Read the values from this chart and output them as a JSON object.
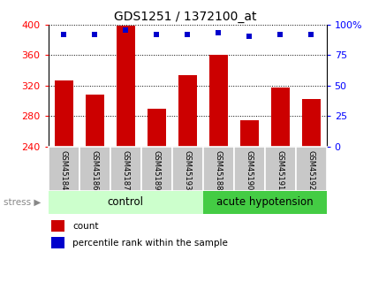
{
  "title": "GDS1251 / 1372100_at",
  "samples": [
    "GSM45184",
    "GSM45186",
    "GSM45187",
    "GSM45189",
    "GSM45193",
    "GSM45188",
    "GSM45190",
    "GSM45191",
    "GSM45192"
  ],
  "counts": [
    326,
    308,
    398,
    289,
    333,
    360,
    274,
    317,
    302
  ],
  "percentiles": [
    92,
    92,
    95,
    92,
    92,
    93,
    90,
    92,
    92
  ],
  "y_min": 240,
  "y_max": 400,
  "y_ticks": [
    240,
    280,
    320,
    360,
    400
  ],
  "right_y_ticks": [
    0,
    25,
    50,
    75,
    100
  ],
  "right_y_labels": [
    "0",
    "25",
    "50",
    "75",
    "100%"
  ],
  "bar_color": "#cc0000",
  "dot_color": "#0000cc",
  "control_label": "control",
  "acute_label": "acute hypotension",
  "stress_label": "stress",
  "control_bg_light": "#ccffcc",
  "acute_bg_dark": "#44cc44",
  "tick_label_bg": "#c8c8c8",
  "n_control": 5,
  "n_acute": 4,
  "legend_count_label": "count",
  "legend_pct_label": "percentile rank within the sample",
  "bar_width": 0.6
}
